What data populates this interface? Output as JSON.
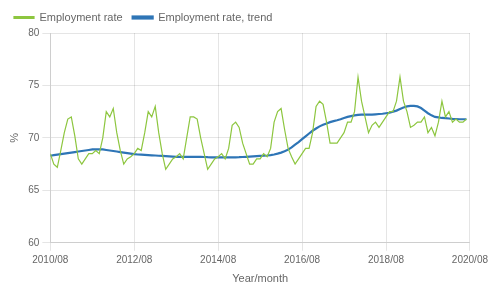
{
  "chart_data": {
    "type": "line",
    "title": "",
    "xlabel": "Year/month",
    "ylabel": "%",
    "x": [
      0,
      1,
      2,
      3,
      4,
      5,
      6,
      7,
      8,
      9,
      10,
      11,
      12,
      13,
      14,
      15,
      16,
      17,
      18,
      19,
      20,
      21,
      22,
      23,
      24,
      25,
      26,
      27,
      28,
      29,
      30,
      31,
      32,
      33,
      34,
      35,
      36,
      37,
      38,
      39,
      40,
      41,
      42,
      43,
      44,
      45,
      46,
      47,
      48,
      49,
      50,
      51,
      52,
      53,
      54,
      55,
      56,
      57,
      58,
      59,
      60,
      61,
      62,
      63,
      64,
      65,
      66,
      67,
      68,
      69,
      70,
      71,
      72,
      73,
      74,
      75,
      76,
      77,
      78,
      79,
      80,
      81,
      82,
      83,
      84,
      85,
      86,
      87,
      88,
      89,
      90,
      91,
      92,
      93,
      94,
      95,
      96,
      97,
      98,
      99,
      100,
      101,
      102,
      103,
      104,
      105,
      106,
      107,
      108,
      109,
      110,
      111,
      112,
      113,
      114,
      115,
      116,
      117,
      118,
      119
    ],
    "series": [
      {
        "name": "Employment rate",
        "color": "#8dc63f",
        "values": [
          68.5,
          67.5,
          67.2,
          68.8,
          70.5,
          71.8,
          72.0,
          70.2,
          68.0,
          67.5,
          68.0,
          68.5,
          68.5,
          68.8,
          68.5,
          70.0,
          72.5,
          72.0,
          72.8,
          70.5,
          68.8,
          67.5,
          68.0,
          68.2,
          68.5,
          69.0,
          68.8,
          70.5,
          72.5,
          72.0,
          73.0,
          70.5,
          68.5,
          67.0,
          67.5,
          68.0,
          68.2,
          68.5,
          68.0,
          70.0,
          72.0,
          72.0,
          71.8,
          70.0,
          68.5,
          67.0,
          67.5,
          68.0,
          68.2,
          68.5,
          68.0,
          69.0,
          71.2,
          71.5,
          71.0,
          69.5,
          68.5,
          67.5,
          67.5,
          68.0,
          68.0,
          68.5,
          68.2,
          69.0,
          71.5,
          72.5,
          72.8,
          70.8,
          69.0,
          68.2,
          67.5,
          68.0,
          68.5,
          69.0,
          69.0,
          70.5,
          73.0,
          73.5,
          73.2,
          71.5,
          69.5,
          69.5,
          69.5,
          70.0,
          70.5,
          71.5,
          71.5,
          72.5,
          75.8,
          73.5,
          72.0,
          70.5,
          71.2,
          71.5,
          71.0,
          71.5,
          72.0,
          72.5,
          72.5,
          73.5,
          75.8,
          73.5,
          72.5,
          71.0,
          71.2,
          71.5,
          71.5,
          72.0,
          70.5,
          71.0,
          70.2,
          71.5,
          73.5,
          72.0,
          72.5,
          71.5,
          71.8,
          71.5,
          71.5,
          71.8
        ]
      },
      {
        "name": "Employment rate, trend",
        "color": "#2e75b6",
        "values": [
          68.3,
          68.35,
          68.4,
          68.45,
          68.5,
          68.55,
          68.6,
          68.65,
          68.7,
          68.75,
          68.8,
          68.85,
          68.9,
          68.9,
          68.9,
          68.9,
          68.85,
          68.8,
          68.75,
          68.7,
          68.65,
          68.6,
          68.55,
          68.5,
          68.45,
          68.42,
          68.4,
          68.38,
          68.36,
          68.34,
          68.32,
          68.3,
          68.28,
          68.26,
          68.24,
          68.22,
          68.2,
          68.2,
          68.2,
          68.2,
          68.2,
          68.2,
          68.2,
          68.2,
          68.18,
          68.16,
          68.15,
          68.15,
          68.15,
          68.15,
          68.15,
          68.15,
          68.15,
          68.15,
          68.16,
          68.18,
          68.2,
          68.22,
          68.24,
          68.26,
          68.28,
          68.3,
          68.32,
          68.36,
          68.42,
          68.5,
          68.6,
          68.72,
          68.88,
          69.1,
          69.35,
          69.6,
          69.88,
          70.15,
          70.42,
          70.68,
          70.9,
          71.1,
          71.25,
          71.38,
          71.5,
          71.6,
          71.68,
          71.78,
          71.9,
          72.0,
          72.08,
          72.15,
          72.2,
          72.22,
          72.22,
          72.22,
          72.22,
          72.25,
          72.28,
          72.3,
          72.35,
          72.4,
          72.5,
          72.6,
          72.75,
          72.9,
          73.0,
          73.05,
          73.05,
          73.0,
          72.85,
          72.6,
          72.35,
          72.15,
          72.0,
          71.95,
          71.9,
          71.88,
          71.85,
          71.82,
          71.8,
          71.78,
          71.78,
          71.78
        ]
      }
    ],
    "xlim": [
      0,
      120
    ],
    "xticks": [
      {
        "value": 0,
        "label": "2010/08"
      },
      {
        "value": 24,
        "label": "2012/08"
      },
      {
        "value": 48,
        "label": "2014/08"
      },
      {
        "value": 72,
        "label": "2016/08"
      },
      {
        "value": 96,
        "label": "2018/08"
      },
      {
        "value": 120,
        "label": "2020/08"
      }
    ],
    "ylim": [
      60,
      80
    ],
    "yticks": [
      60,
      65,
      70,
      75,
      80
    ],
    "grid": true,
    "legend": "upper left"
  }
}
